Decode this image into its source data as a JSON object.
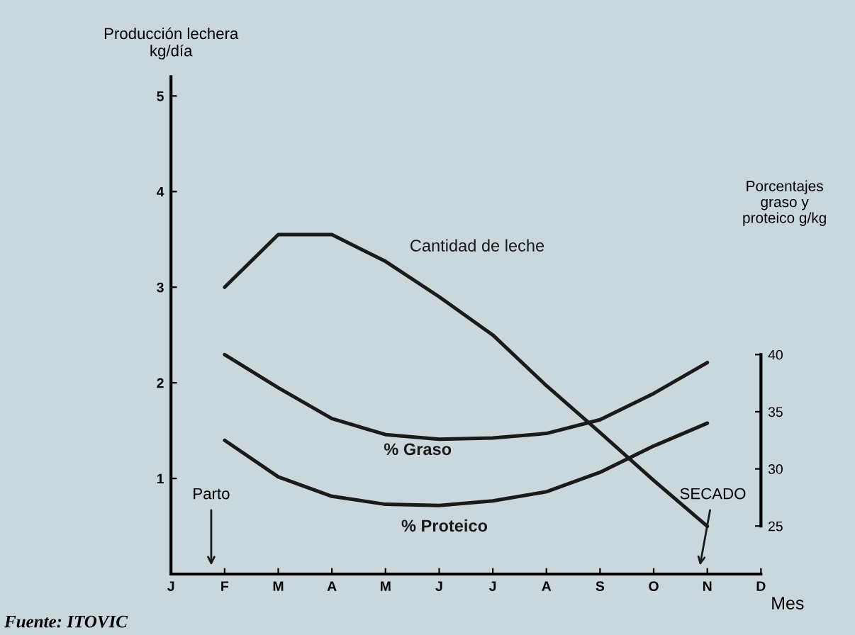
{
  "chart_data": {
    "type": "line",
    "ylabel": "Producción lechera\nkg/día",
    "y2label": "Porcentajes\ngraso y\nproteico g/kg",
    "xlabel": "Mes",
    "categories": [
      "J",
      "F",
      "M",
      "A",
      "M",
      "J",
      "J",
      "A",
      "S",
      "O",
      "N",
      "D"
    ],
    "ylim": [
      0,
      5.2
    ],
    "yticks": [
      1,
      2,
      3,
      4,
      5
    ],
    "y2lim": [
      20.8,
      64.3
    ],
    "y2ticks": [
      25,
      30,
      35,
      40
    ],
    "series": [
      {
        "name": "Cantidad de leche",
        "color": "#1a1a1a",
        "values": [
          null,
          3.0,
          3.55,
          3.55,
          3.27,
          2.9,
          2.5,
          1.97,
          1.48,
          0.98,
          0.5,
          null
        ]
      },
      {
        "name": "% Graso",
        "color": "#1a1a1a",
        "axis": "y2",
        "values": [
          null,
          40.0,
          37.1,
          34.4,
          33.0,
          32.6,
          32.7,
          33.1,
          34.3,
          36.6,
          39.3,
          null
        ]
      },
      {
        "name": "% Proteico",
        "color": "#1a1a1a",
        "axis": "y2",
        "values": [
          null,
          32.5,
          29.3,
          27.6,
          26.9,
          26.8,
          27.2,
          28.0,
          29.7,
          32.0,
          34.0,
          null
        ]
      }
    ],
    "annotations": [
      "Parto",
      "SECADO",
      "Fuente: ITOVIC"
    ],
    "grid": false,
    "legend": false,
    "marker": "none",
    "line_style": "solid"
  }
}
